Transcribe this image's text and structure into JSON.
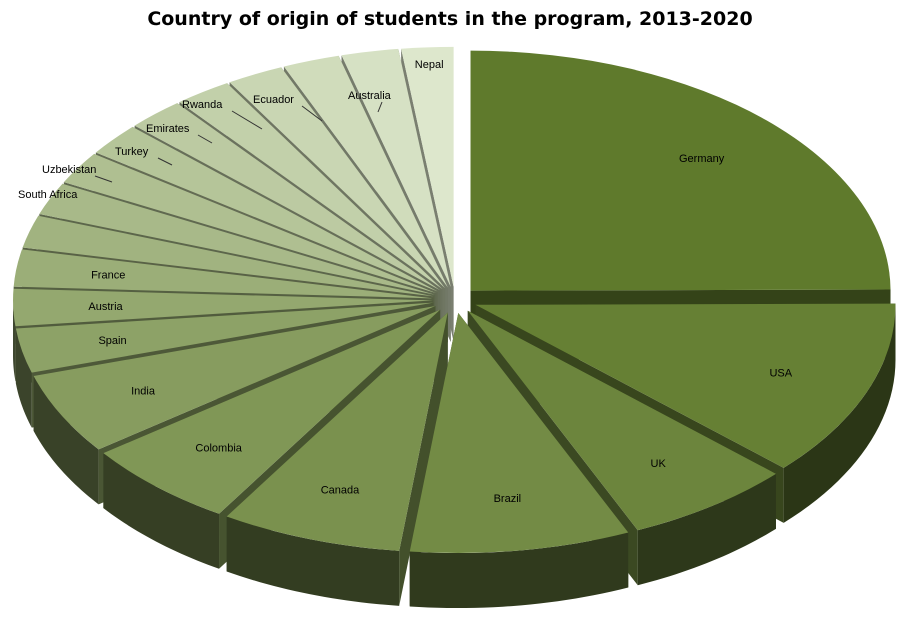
{
  "chart_data": {
    "type": "pie",
    "title": "Country of origin of students in the program, 2013-2020",
    "style": "3D exploded pie",
    "colors": {
      "top_darkest": "#5f7a2c",
      "top_lightest": "#dde7cc",
      "side_dark": "#2c3815",
      "label_leader": "#333333"
    },
    "slices": [
      {
        "label": "Germany",
        "value": 25.0
      },
      {
        "label": "USA",
        "value": 12.0
      },
      {
        "label": "UK",
        "value": 6.5
      },
      {
        "label": "Brazil",
        "value": 8.5
      },
      {
        "label": "Canada",
        "value": 7.0
      },
      {
        "label": "Colombia",
        "value": 6.0
      },
      {
        "label": "India",
        "value": 5.5
      },
      {
        "label": "Spain",
        "value": 3.0
      },
      {
        "label": "Austria",
        "value": 2.5
      },
      {
        "label": "France",
        "value": 2.5
      },
      {
        "label": "",
        "value": 2.2
      },
      {
        "label": "South Africa",
        "value": 2.2
      },
      {
        "label": "Uzbekistan",
        "value": 2.2
      },
      {
        "label": "Turkey",
        "value": 2.2
      },
      {
        "label": "",
        "value": 2.2
      },
      {
        "label": "Emirates",
        "value": 2.2
      },
      {
        "label": "Rwanda",
        "value": 2.2
      },
      {
        "label": "Ecuador",
        "value": 2.2
      },
      {
        "label": "Australia",
        "value": 2.2
      },
      {
        "label": "Nepal",
        "value": 2.0
      }
    ]
  }
}
